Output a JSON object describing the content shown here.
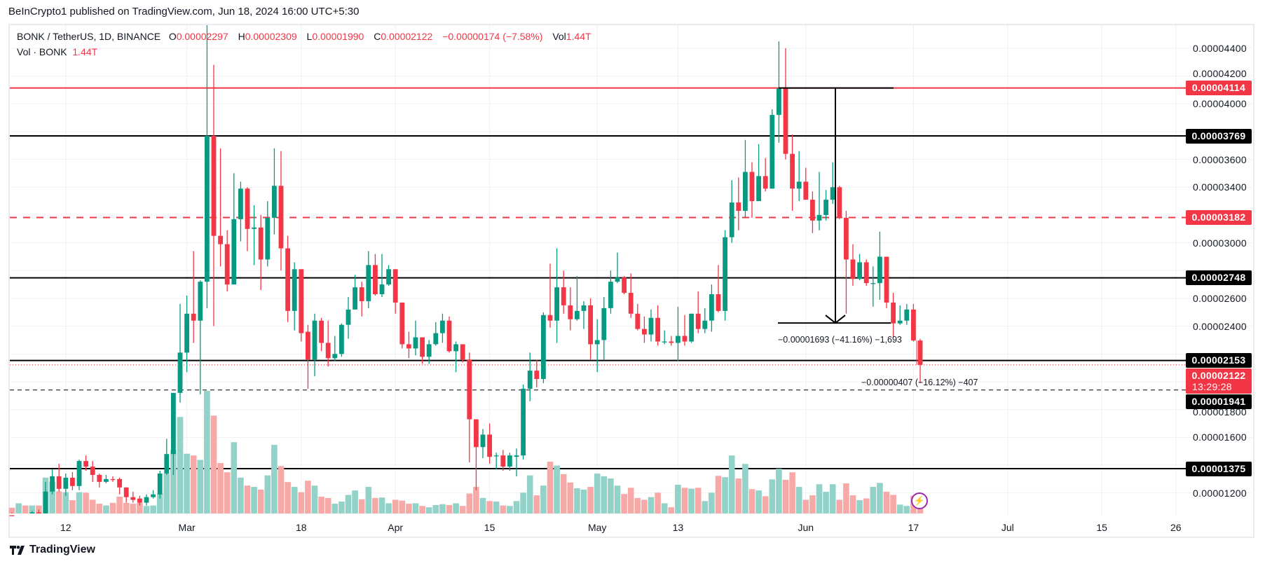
{
  "header": {
    "published": "BeInCrypto1 published on TradingView.com, Jun 18, 2024 16:00 UTC+5:30"
  },
  "legend": {
    "symbol": "BONK / TetherUS, 1D, BINANCE",
    "o_label": "O",
    "o_value": "0.00002297",
    "h_label": "H",
    "h_value": "0.00002309",
    "l_label": "L",
    "l_value": "0.00001990",
    "c_label": "C",
    "c_value": "0.00002122",
    "change": "−0.00000174 (−7.58%)",
    "vol_label": "Vol",
    "vol_value": "1.44T",
    "vol_series": "Vol · BONK",
    "vol_series_value": "1.44T"
  },
  "price_axis": {
    "ticks": [
      "0.00004400",
      "0.00004200",
      "0.00004000",
      "0.00003600",
      "0.00003400",
      "0.00003000",
      "0.00002800",
      "0.00002600",
      "0.00002400",
      "0.00001800",
      "0.00001600",
      "0.00001200"
    ],
    "tick_values": [
      44,
      42,
      40,
      36,
      34,
      30,
      28,
      26,
      24,
      18,
      16,
      12
    ]
  },
  "time_axis": {
    "labels": [
      "12",
      "Mar",
      "18",
      "Apr",
      "15",
      "May",
      "13",
      "Jun",
      "17",
      "Jul",
      "15",
      "26"
    ],
    "day_index": [
      8,
      26,
      43,
      57,
      71,
      87,
      99,
      118,
      134,
      148,
      162,
      173
    ]
  },
  "levels": [
    {
      "label": "0.00004114",
      "value": 41.14,
      "style": "solid",
      "color": "#f23645"
    },
    {
      "label": "0.00003769",
      "value": 37.69,
      "style": "solid",
      "color": "#000000"
    },
    {
      "label": "0.00003182",
      "value": 31.82,
      "style": "dashed",
      "color": "#f23645"
    },
    {
      "label": "0.00002748",
      "value": 27.48,
      "style": "solid",
      "color": "#000000"
    },
    {
      "label": "0.00002153",
      "value": 21.53,
      "style": "solid",
      "color": "#000000"
    },
    {
      "label": "0.00001941",
      "value": 19.41,
      "style": "dashed-thin",
      "color": "#000000"
    },
    {
      "label": "0.00001375",
      "value": 13.75,
      "style": "solid",
      "color": "#000000"
    }
  ],
  "current_price": {
    "label": "0.00002122",
    "value": 21.22,
    "countdown": "13:29:28",
    "color": "#f23645"
  },
  "measurements": [
    {
      "text": "−0.00001693 (−41.16%) −1,693",
      "from": 41.14,
      "to": 24.23
    },
    {
      "text": "−0.00000407 (−16.12%) −407"
    }
  ],
  "footer": {
    "brand": "TradingView"
  },
  "colors": {
    "up": "#089981",
    "down": "#f23645",
    "vol_up": "#92d2c8",
    "vol_down": "#f7a9a7"
  },
  "chart_data": {
    "type": "candlestick",
    "title": "BONK / TetherUS, 1D, BINANCE",
    "price_unit": "1e-6 USDT",
    "volume_unit": "T",
    "start_date": "2024-02-04",
    "interval": "1D",
    "ylim": [
      10.9,
      46.5
    ],
    "columns": [
      "open",
      "high",
      "low",
      "close",
      "volume"
    ],
    "ohlcv": [
      [
        10.4,
        10.6,
        10.0,
        10.2,
        1.3
      ],
      [
        10.2,
        10.5,
        9.9,
        10.4,
        2.3
      ],
      [
        10.4,
        10.5,
        9.9,
        10.2,
        1.8
      ],
      [
        10.2,
        10.7,
        10.0,
        10.6,
        1.8
      ],
      [
        10.6,
        10.8,
        10.3,
        10.5,
        1.8
      ],
      [
        10.5,
        12.8,
        10.3,
        12.1,
        8.1
      ],
      [
        12.1,
        13.7,
        11.9,
        13.2,
        7.2
      ],
      [
        13.2,
        14.1,
        12.1,
        12.3,
        5.0
      ],
      [
        12.3,
        13.4,
        11.8,
        13.1,
        4.8
      ],
      [
        13.1,
        13.5,
        12.2,
        12.5,
        3.0
      ],
      [
        12.5,
        14.4,
        12.2,
        14.3,
        4.8
      ],
      [
        14.3,
        14.7,
        13.6,
        13.9,
        4.7
      ],
      [
        13.9,
        14.3,
        12.8,
        13.3,
        3.1
      ],
      [
        13.3,
        13.4,
        12.4,
        12.8,
        2.2
      ],
      [
        12.8,
        13.3,
        12.7,
        13.0,
        1.8
      ],
      [
        13.0,
        13.2,
        12.8,
        12.95,
        2.4
      ],
      [
        13.0,
        13.1,
        11.9,
        12.4,
        3.8
      ],
      [
        12.4,
        12.4,
        11.3,
        11.7,
        2.4
      ],
      [
        11.7,
        12.1,
        11.3,
        11.5,
        2.2
      ],
      [
        11.6,
        11.8,
        11.1,
        11.3,
        2.4
      ],
      [
        11.3,
        11.9,
        11.1,
        11.7,
        1.7
      ],
      [
        11.7,
        12.2,
        11.6,
        11.9,
        1.8
      ],
      [
        11.9,
        13.6,
        11.6,
        13.4,
        4.5
      ],
      [
        13.4,
        15.9,
        13.3,
        14.8,
        9.0
      ],
      [
        14.8,
        19.2,
        13.3,
        19.2,
        14.4
      ],
      [
        19.2,
        25.6,
        18.5,
        22.1,
        21.8
      ],
      [
        22.1,
        26.2,
        20.7,
        24.9,
        13.5
      ],
      [
        24.9,
        29.4,
        22.8,
        24.4,
        13.1
      ],
      [
        24.4,
        27.3,
        19.1,
        27.2,
        12.1
      ],
      [
        27.2,
        46.0,
        25.3,
        37.7,
        27.7
      ],
      [
        37.7,
        42.8,
        24.0,
        30.5,
        22.1
      ],
      [
        30.5,
        36.8,
        28.3,
        29.9,
        11.4
      ],
      [
        29.9,
        30.9,
        26.5,
        27.0,
        9.3
      ],
      [
        27.0,
        35.0,
        27.0,
        31.7,
        16.1
      ],
      [
        31.7,
        34.4,
        30.1,
        33.9,
        8.1
      ],
      [
        33.9,
        34.0,
        29.4,
        31.0,
        6.3
      ],
      [
        31.0,
        32.7,
        28.4,
        31.1,
        6.0
      ],
      [
        31.1,
        32.0,
        26.6,
        28.8,
        5.4
      ],
      [
        28.8,
        33.0,
        28.3,
        31.8,
        8.6
      ],
      [
        31.8,
        36.8,
        30.6,
        34.1,
        15.5
      ],
      [
        34.1,
        36.6,
        28.0,
        29.6,
        10.7
      ],
      [
        29.6,
        30.5,
        24.3,
        25.1,
        7.1
      ],
      [
        25.1,
        28.6,
        23.7,
        28.1,
        6.0
      ],
      [
        28.1,
        28.1,
        22.9,
        23.5,
        4.8
      ],
      [
        23.6,
        24.1,
        19.5,
        21.6,
        7.4
      ],
      [
        21.6,
        24.9,
        20.4,
        24.4,
        6.3
      ],
      [
        24.4,
        24.6,
        22.2,
        22.8,
        3.8
      ],
      [
        22.8,
        24.4,
        21.1,
        21.7,
        3.5
      ],
      [
        21.7,
        23.3,
        21.5,
        22.0,
        2.2
      ],
      [
        22.0,
        24.2,
        21.8,
        24.1,
        2.7
      ],
      [
        24.1,
        26.1,
        23.1,
        25.2,
        4.2
      ],
      [
        25.2,
        27.7,
        25.2,
        26.8,
        5.2
      ],
      [
        26.8,
        27.2,
        24.7,
        25.8,
        3.2
      ],
      [
        25.8,
        29.4,
        25.3,
        28.4,
        6.0
      ],
      [
        28.4,
        29.2,
        26.2,
        26.3,
        3.5
      ],
      [
        26.3,
        29.2,
        26.1,
        27.0,
        3.6
      ],
      [
        27.0,
        28.4,
        26.9,
        28.1,
        2.3
      ],
      [
        28.1,
        28.1,
        24.9,
        25.7,
        3.1
      ],
      [
        25.7,
        25.7,
        22.4,
        22.7,
        2.9
      ],
      [
        22.7,
        23.6,
        21.7,
        22.4,
        2.2
      ],
      [
        22.4,
        24.4,
        21.9,
        23.2,
        2.3
      ],
      [
        23.2,
        23.2,
        21.3,
        21.8,
        1.7
      ],
      [
        21.8,
        23.0,
        21.3,
        22.7,
        1.4
      ],
      [
        22.7,
        24.3,
        22.6,
        23.5,
        1.9
      ],
      [
        23.5,
        24.9,
        22.8,
        24.4,
        2.1
      ],
      [
        24.4,
        24.7,
        22.1,
        22.2,
        1.9
      ],
      [
        22.2,
        22.9,
        20.7,
        22.7,
        2.3
      ],
      [
        22.7,
        22.7,
        21.4,
        21.6,
        1.7
      ],
      [
        21.6,
        22.1,
        14.2,
        17.3,
        4.5
      ],
      [
        17.3,
        17.3,
        12.2,
        15.3,
        6.0
      ],
      [
        15.3,
        16.6,
        14.5,
        16.2,
        3.5
      ],
      [
        16.2,
        17.0,
        14.1,
        14.6,
        2.8
      ],
      [
        14.65,
        14.9,
        13.7,
        14.7,
        2.7
      ],
      [
        14.7,
        15.1,
        13.6,
        13.9,
        1.8
      ],
      [
        13.9,
        14.9,
        13.6,
        14.7,
        1.7
      ],
      [
        14.6,
        15.2,
        13.2,
        14.7,
        2.8
      ],
      [
        14.7,
        19.8,
        14.4,
        19.5,
        4.7
      ],
      [
        19.5,
        22.1,
        18.6,
        20.8,
        8.6
      ],
      [
        20.8,
        21.6,
        19.6,
        20.2,
        4.1
      ],
      [
        20.2,
        25.0,
        19.9,
        24.8,
        6.3
      ],
      [
        24.8,
        28.5,
        23.9,
        24.4,
        11.7
      ],
      [
        24.4,
        29.6,
        22.8,
        26.8,
        10.8
      ],
      [
        26.8,
        28.0,
        24.9,
        25.5,
        8.9
      ],
      [
        25.5,
        26.8,
        23.7,
        24.5,
        7.0
      ],
      [
        24.5,
        27.6,
        24.4,
        25.1,
        5.7
      ],
      [
        25.1,
        25.8,
        23.8,
        25.5,
        5.4
      ],
      [
        25.5,
        26.0,
        21.6,
        22.7,
        6.0
      ],
      [
        22.7,
        24.5,
        20.7,
        23.0,
        9.0
      ],
      [
        23.0,
        26.1,
        21.6,
        25.3,
        8.4
      ],
      [
        25.3,
        28.0,
        24.9,
        27.2,
        7.9
      ],
      [
        27.2,
        29.3,
        27.1,
        27.5,
        6.3
      ],
      [
        27.5,
        27.6,
        26.3,
        26.4,
        4.4
      ],
      [
        26.4,
        27.8,
        24.6,
        24.9,
        5.8
      ],
      [
        24.9,
        25.6,
        23.7,
        23.8,
        3.5
      ],
      [
        23.8,
        24.7,
        22.8,
        23.4,
        3.1
      ],
      [
        23.4,
        25.2,
        22.9,
        24.6,
        3.7
      ],
      [
        24.6,
        25.5,
        22.6,
        22.9,
        4.7
      ],
      [
        22.85,
        23.7,
        22.7,
        22.9,
        2.3
      ],
      [
        22.9,
        23.3,
        22.6,
        22.8,
        1.4
      ],
      [
        22.8,
        25.4,
        21.5,
        23.3,
        6.5
      ],
      [
        23.3,
        24.8,
        22.6,
        22.9,
        5.8
      ],
      [
        22.9,
        24.9,
        22.8,
        24.9,
        5.6
      ],
      [
        24.9,
        26.5,
        23.5,
        23.8,
        5.8
      ],
      [
        23.8,
        25.3,
        23.5,
        24.4,
        2.8
      ],
      [
        24.4,
        27.0,
        23.6,
        26.3,
        4.7
      ],
      [
        26.3,
        28.4,
        25.0,
        25.1,
        8.5
      ],
      [
        25.1,
        30.9,
        24.4,
        30.4,
        8.2
      ],
      [
        30.4,
        34.5,
        30.0,
        32.9,
        13.1
      ],
      [
        32.9,
        34.7,
        30.9,
        32.3,
        7.9
      ],
      [
        32.3,
        37.4,
        31.8,
        35.1,
        11.2
      ],
      [
        35.1,
        35.8,
        31.8,
        33.0,
        5.5
      ],
      [
        33.0,
        37.1,
        33.0,
        34.8,
        5.2
      ],
      [
        34.8,
        36.1,
        33.7,
        33.9,
        3.9
      ],
      [
        33.9,
        39.6,
        33.9,
        39.2,
        7.7
      ],
      [
        39.2,
        44.5,
        37.2,
        41.1,
        10.1
      ],
      [
        41.1,
        44.0,
        36.0,
        36.4,
        7.6
      ],
      [
        36.4,
        37.8,
        32.3,
        33.9,
        9.3
      ],
      [
        33.9,
        36.6,
        33.0,
        34.4,
        6.0
      ],
      [
        34.4,
        35.4,
        33.1,
        33.1,
        3.1
      ],
      [
        33.1,
        33.7,
        30.7,
        31.6,
        4.1
      ],
      [
        31.6,
        35.1,
        30.9,
        32.0,
        6.6
      ],
      [
        32.0,
        33.8,
        31.6,
        33.1,
        4.9
      ],
      [
        33.1,
        35.8,
        32.8,
        34.0,
        6.6
      ],
      [
        34.0,
        34.1,
        31.7,
        31.8,
        3.1
      ],
      [
        31.8,
        32.3,
        24.9,
        28.8,
        6.8
      ],
      [
        28.8,
        29.9,
        26.9,
        27.4,
        4.1
      ],
      [
        27.4,
        29.2,
        27.3,
        28.6,
        3.0
      ],
      [
        28.6,
        28.8,
        26.9,
        27.1,
        3.4
      ],
      [
        27.05,
        28.3,
        25.4,
        27.1,
        6.0
      ],
      [
        27.1,
        30.8,
        25.9,
        29.0,
        6.9
      ],
      [
        29.0,
        29.0,
        25.3,
        25.7,
        4.9
      ],
      [
        25.7,
        26.4,
        23.2,
        24.2,
        4.2
      ],
      [
        24.2,
        25.5,
        24.1,
        24.4,
        2.0
      ],
      [
        24.4,
        25.6,
        24.1,
        25.2,
        1.7
      ],
      [
        25.2,
        25.6,
        22.9,
        22.97,
        4.0
      ],
      [
        22.97,
        23.09,
        19.9,
        21.22,
        1.44
      ]
    ]
  }
}
